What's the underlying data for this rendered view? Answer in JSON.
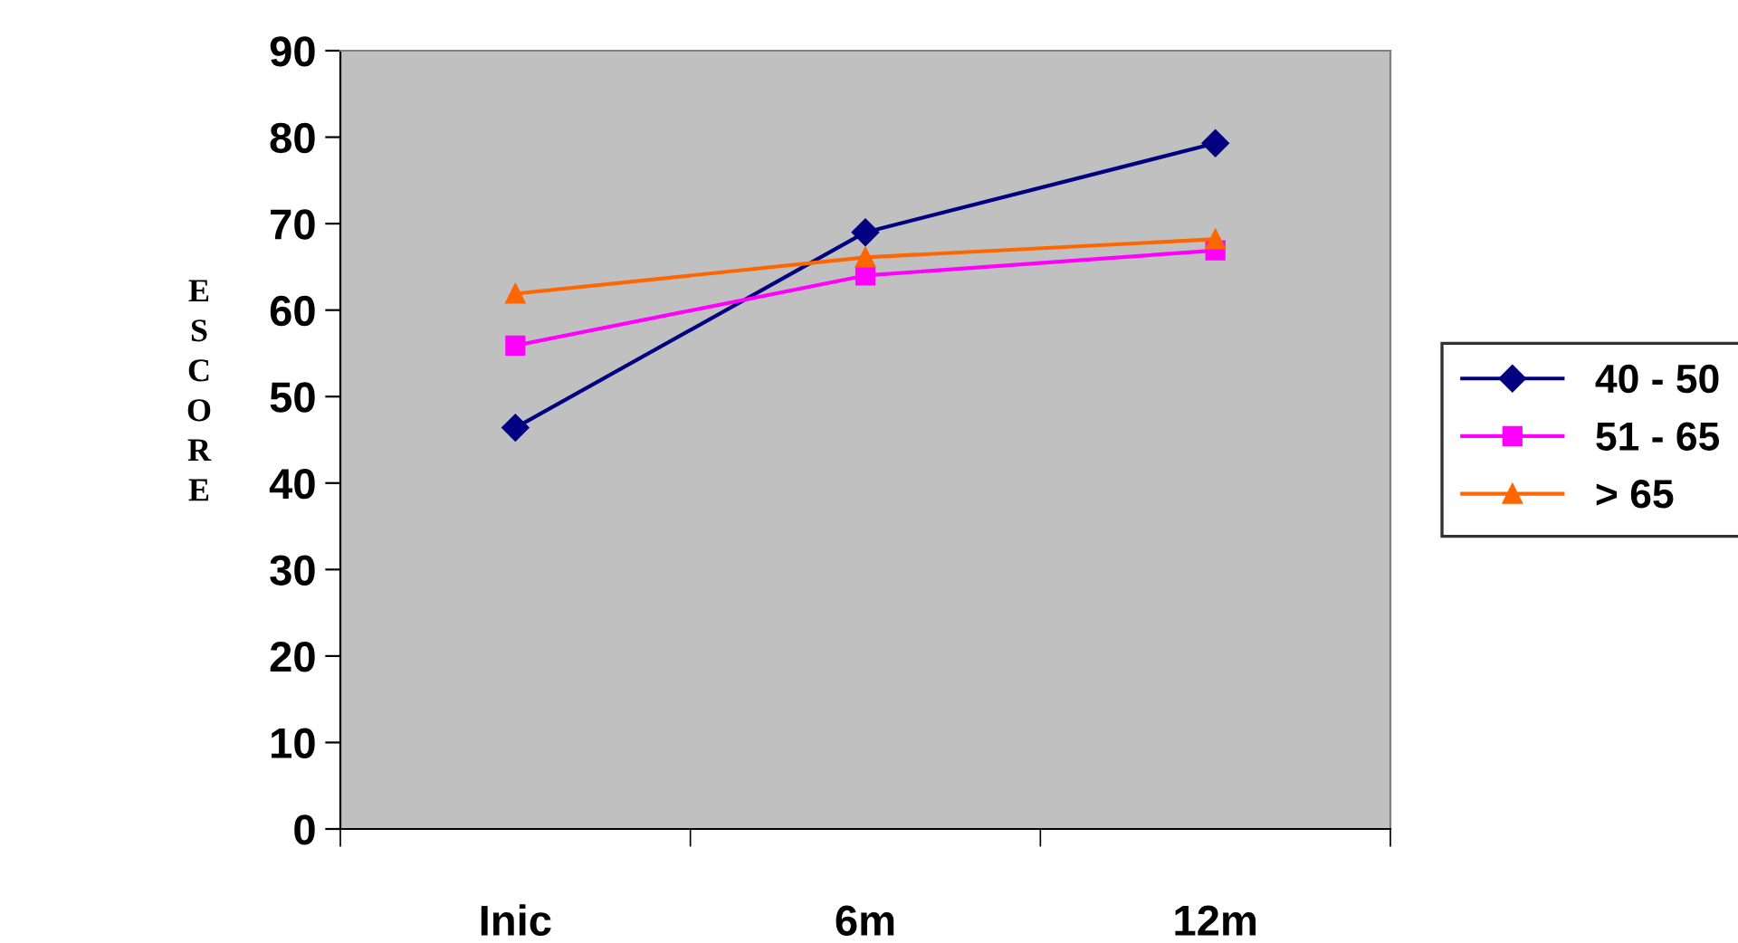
{
  "chart_data": {
    "type": "line",
    "ylabel": "ESCORE",
    "categories": [
      "Inic",
      "6m",
      "12m"
    ],
    "series": [
      {
        "name": "40 - 50",
        "color": "#000080",
        "values": [
          46.4,
          69.0,
          79.3
        ],
        "marker": "diamond"
      },
      {
        "name": "51 - 65",
        "color": "#ff00ff",
        "values": [
          55.9,
          64.0,
          66.9
        ],
        "marker": "square"
      },
      {
        "name": "> 65",
        "color": "#ff6600",
        "values": [
          61.9,
          66.1,
          68.2
        ],
        "marker": "triangle"
      }
    ],
    "ylim": [
      0,
      90
    ],
    "yticks": [
      0,
      10,
      20,
      30,
      40,
      50,
      60,
      70,
      80,
      90
    ],
    "grid": false,
    "legend": "right",
    "line_style": "solid"
  }
}
